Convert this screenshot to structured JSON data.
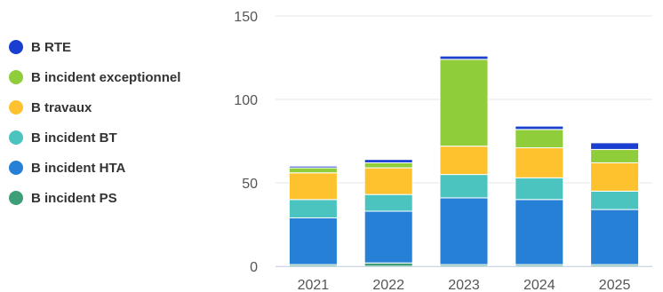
{
  "chart_data": {
    "type": "bar",
    "stacked": true,
    "categories": [
      "2021",
      "2022",
      "2023",
      "2024",
      "2025"
    ],
    "ylim": [
      0,
      150
    ],
    "yticks": [
      0,
      50,
      100,
      150
    ],
    "grid": true,
    "legend_position": "left",
    "series": [
      {
        "name": "B incident PS",
        "color": "#3d9e78",
        "values": [
          1,
          2,
          1,
          1,
          1
        ]
      },
      {
        "name": "B incident HTA",
        "color": "#2680d6",
        "values": [
          28,
          31,
          40,
          39,
          33
        ]
      },
      {
        "name": "B incident BT",
        "color": "#4bc4c0",
        "values": [
          11,
          10,
          14,
          13,
          11
        ]
      },
      {
        "name": "B travaux",
        "color": "#fdc22e",
        "values": [
          16,
          16,
          17,
          18,
          17
        ]
      },
      {
        "name": "B incident exceptionnel",
        "color": "#8fce3a",
        "values": [
          3,
          3,
          52,
          11,
          8
        ]
      },
      {
        "name": "B RTE",
        "color": "#1a3fd0",
        "values": [
          1,
          2,
          2,
          2,
          4
        ]
      }
    ]
  }
}
